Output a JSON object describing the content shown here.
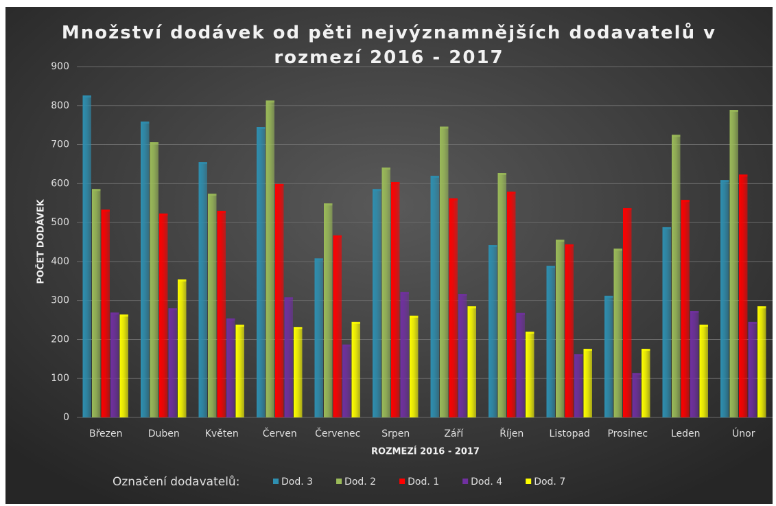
{
  "chart_data": {
    "type": "bar",
    "title": "Množství dodávek od pěti nejvýznamnějších dodavatelů v rozmezí 2016 - 2017",
    "x_label": "ROZMEZÍ 2016 - 2017",
    "y_label": "POČET DODÁVEK",
    "legend_title": "Označení dodavatelů:",
    "legend_position": "bottom",
    "grid": true,
    "categories": [
      "Březen",
      "Duben",
      "Květen",
      "Červen",
      "Červenec",
      "Srpen",
      "Září",
      "Říjen",
      "Listopad",
      "Prosinec",
      "Leden",
      "Únor"
    ],
    "series": [
      {
        "name": "Dod. 3",
        "color": "#2e8fb0",
        "values": [
          826,
          759,
          655,
          745,
          408,
          586,
          620,
          442,
          389,
          312,
          488,
          609
        ]
      },
      {
        "name": "Dod. 2",
        "color": "#9bbb59",
        "values": [
          586,
          706,
          574,
          813,
          549,
          641,
          746,
          627,
          456,
          433,
          725,
          789
        ]
      },
      {
        "name": "Dod. 1",
        "color": "#ff0000",
        "values": [
          533,
          523,
          530,
          599,
          467,
          604,
          562,
          579,
          444,
          537,
          558,
          623
        ]
      },
      {
        "name": "Dod. 4",
        "color": "#7030a0",
        "values": [
          269,
          280,
          254,
          308,
          187,
          322,
          317,
          268,
          162,
          114,
          273,
          245
        ]
      },
      {
        "name": "Dod. 7",
        "color": "#ffff00",
        "values": [
          264,
          354,
          238,
          232,
          245,
          261,
          285,
          220,
          176,
          176,
          238,
          285
        ]
      }
    ],
    "ylim": [
      0,
      900
    ],
    "yticks": [
      0,
      100,
      200,
      300,
      400,
      500,
      600,
      700,
      800,
      900
    ]
  }
}
